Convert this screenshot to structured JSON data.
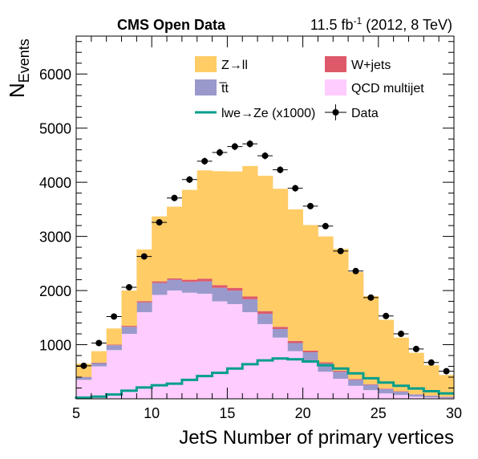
{
  "header": {
    "title": "CMS Open Data",
    "lumi_prefix": "11.5 fb",
    "lumi_exp": "-1",
    "lumi_suffix": " (2012, 8 TeV)"
  },
  "chart_data": {
    "type": "stacked-histogram",
    "xlabel": "JetS Number of primary vertices",
    "ylabel_main": "N",
    "ylabel_sub": "Events",
    "xlim": [
      5,
      30
    ],
    "ylim": [
      0,
      6700
    ],
    "xticks": [
      5,
      10,
      15,
      20,
      25,
      30
    ],
    "yticks": [
      1000,
      2000,
      3000,
      4000,
      5000,
      6000
    ],
    "bin_edges": [
      5,
      6,
      7,
      8,
      9,
      10,
      11,
      12,
      13,
      14,
      15,
      16,
      17,
      18,
      19,
      20,
      21,
      22,
      23,
      24,
      25,
      26,
      27,
      28,
      29,
      30
    ],
    "stack_order": [
      "QCD multijet",
      "t̅t",
      "W+jets",
      "Z→ll"
    ],
    "series": [
      {
        "name": "QCD multijet",
        "color": "#ffccff",
        "values": [
          350,
          600,
          900,
          1200,
          1600,
          1920,
          2000,
          1960,
          1940,
          1800,
          1750,
          1600,
          1380,
          1130,
          880,
          680,
          500,
          370,
          240,
          160,
          100,
          70,
          40,
          25,
          15
        ]
      },
      {
        "name": "t̅t",
        "color": "#9999cc",
        "values": [
          50,
          60,
          90,
          130,
          180,
          220,
          200,
          200,
          230,
          250,
          250,
          240,
          190,
          160,
          150,
          180,
          150,
          130,
          110,
          100,
          80,
          60,
          40,
          30,
          20
        ]
      },
      {
        "name": "W+jets",
        "color": "#de5a6a",
        "values": [
          5,
          8,
          12,
          18,
          25,
          30,
          25,
          40,
          50,
          50,
          50,
          50,
          50,
          40,
          40,
          30,
          25,
          20,
          15,
          10,
          10,
          10,
          5,
          5,
          5
        ]
      },
      {
        "name": "Z→ll",
        "color": "#ffcc66",
        "values": [
          245,
          212,
          298,
          652,
          955,
          1200,
          1325,
          1660,
          2000,
          2105,
          2150,
          2410,
          2500,
          2550,
          2430,
          2320,
          2325,
          2250,
          1975,
          1630,
          1270,
          990,
          765,
          560,
          400
        ]
      },
      {
        "name": "lwe→Ze (x1000)",
        "color": "#009e8c",
        "style": "line",
        "values": [
          20,
          40,
          80,
          150,
          210,
          250,
          280,
          350,
          420,
          480,
          560,
          640,
          710,
          745,
          730,
          690,
          620,
          560,
          470,
          380,
          300,
          240,
          190,
          140,
          100
        ]
      }
    ],
    "data": {
      "name": "Data",
      "x": [
        5.5,
        6.5,
        7.5,
        8.5,
        9.5,
        10.5,
        11.5,
        12.5,
        13.5,
        14.5,
        15.5,
        16.5,
        17.5,
        18.5,
        19.5,
        20.5,
        21.5,
        22.5,
        23.5,
        24.5,
        25.5,
        26.5,
        27.5,
        28.5,
        29.5
      ],
      "y": [
        610,
        1030,
        1520,
        2060,
        2630,
        3260,
        3710,
        4050,
        4390,
        4550,
        4660,
        4710,
        4490,
        4230,
        3890,
        3560,
        3190,
        2730,
        2360,
        1870,
        1530,
        1200,
        920,
        670,
        510
      ]
    },
    "legend": {
      "placement": "top",
      "entries": [
        {
          "label": "Z→ll",
          "kind": "box",
          "color": "#ffcc66"
        },
        {
          "label": "W+jets",
          "kind": "box",
          "color": "#de5a6a"
        },
        {
          "label": "t̅t",
          "kind": "box",
          "color": "#9999cc"
        },
        {
          "label": "QCD multijet",
          "kind": "box",
          "color": "#ffccff"
        },
        {
          "label": "lwe→Ze (x1000)",
          "kind": "line",
          "color": "#009e8c"
        },
        {
          "label": "Data",
          "kind": "marker",
          "color": "#000000"
        }
      ]
    }
  }
}
